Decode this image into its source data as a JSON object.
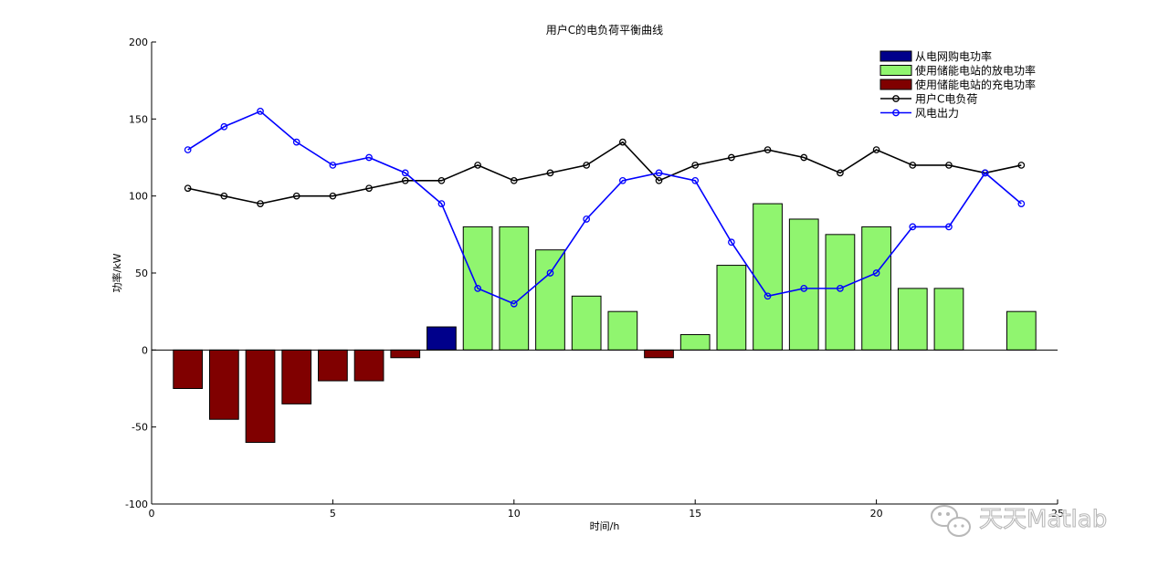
{
  "chart_data": {
    "type": "bar",
    "title": "用户C的电负荷平衡曲线",
    "xlabel": "时间/h",
    "ylabel": "功率/kW",
    "xlim": [
      0,
      25
    ],
    "ylim": [
      -100,
      200
    ],
    "xticks": [
      0,
      5,
      10,
      15,
      20,
      25
    ],
    "xtick_labels": [
      "0",
      "5",
      "10",
      "15",
      "20",
      "25"
    ],
    "yticks": [
      -100,
      -50,
      0,
      50,
      100,
      150,
      200
    ],
    "ytick_labels": [
      "-100",
      "-50",
      "0",
      "50",
      "100",
      "150",
      "200"
    ],
    "grid": false,
    "legend_position": "top-right",
    "x": [
      1,
      2,
      3,
      4,
      5,
      6,
      7,
      8,
      9,
      10,
      11,
      12,
      13,
      14,
      15,
      16,
      17,
      18,
      19,
      20,
      21,
      22,
      23,
      24
    ],
    "bar_series": [
      {
        "name": "从电网购电功率",
        "color": "#00008b",
        "values": [
          0,
          0,
          0,
          0,
          0,
          0,
          0,
          15,
          0,
          0,
          0,
          0,
          0,
          0,
          0,
          0,
          0,
          0,
          0,
          0,
          0,
          0,
          0,
          0
        ]
      },
      {
        "name": "使用储能电站的放电功率",
        "color": "#90f56f",
        "values": [
          0,
          0,
          0,
          0,
          0,
          0,
          0,
          0,
          80,
          80,
          65,
          35,
          25,
          0,
          10,
          55,
          95,
          85,
          75,
          80,
          40,
          40,
          0,
          25
        ]
      },
      {
        "name": "使用储能电站的充电功率",
        "color": "#800000",
        "values": [
          -25,
          -45,
          -60,
          -35,
          -20,
          -20,
          -5,
          0,
          0,
          0,
          0,
          0,
          0,
          -5,
          0,
          0,
          0,
          0,
          0,
          0,
          0,
          0,
          0,
          0
        ]
      }
    ],
    "line_series": [
      {
        "name": "用户C电负荷",
        "color": "#000000",
        "values": [
          105,
          100,
          95,
          100,
          100,
          105,
          110,
          110,
          120,
          110,
          115,
          120,
          135,
          110,
          120,
          125,
          130,
          125,
          115,
          130,
          120,
          120,
          115,
          120
        ]
      },
      {
        "name": "风电出力",
        "color": "#0000ff",
        "values": [
          130,
          145,
          155,
          135,
          120,
          125,
          115,
          95,
          40,
          30,
          50,
          85,
          110,
          115,
          110,
          70,
          35,
          40,
          40,
          50,
          80,
          80,
          115,
          95
        ]
      }
    ],
    "watermark": "天天Matlab"
  }
}
